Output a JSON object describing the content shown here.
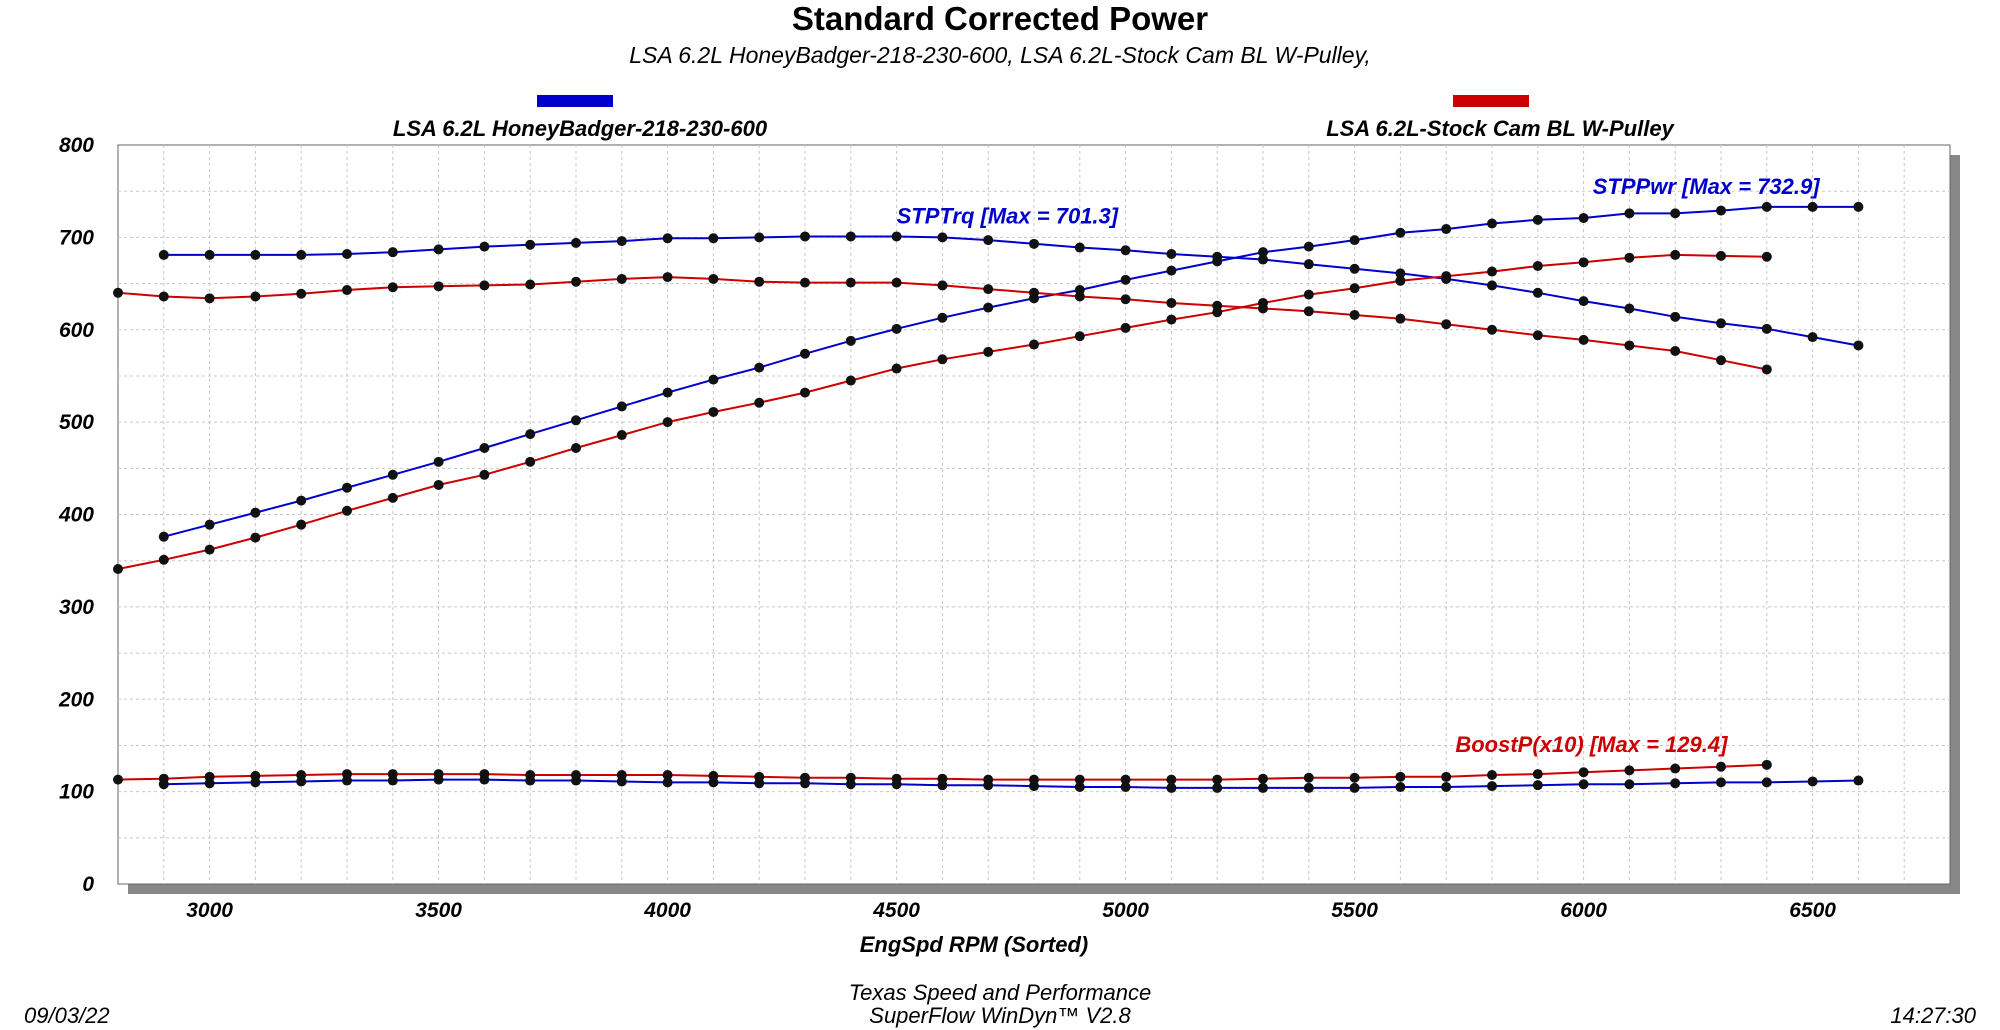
{
  "header": {
    "title": "Standard Corrected Power",
    "subtitle": "LSA 6.2L HoneyBadger-218-230-600, LSA 6.2L-Stock Cam BL W-Pulley,"
  },
  "legend": [
    {
      "label": "LSA 6.2L HoneyBadger-218-230-600",
      "color": "#0000cc"
    },
    {
      "label": "LSA 6.2L-Stock Cam BL W-Pulley",
      "color": "#cc0000"
    }
  ],
  "footer": {
    "date": "09/03/22",
    "time": "14:27:30",
    "shop": "Texas Speed and Performance",
    "software": "SuperFlow WinDyn™  V2.8"
  },
  "chart_data": {
    "type": "line",
    "xlabel": "EngSpd  RPM   (Sorted)",
    "ylabel": "",
    "xlim": [
      2800,
      6800
    ],
    "ylim": [
      0,
      800
    ],
    "x_ticks": [
      3000,
      3500,
      4000,
      4500,
      5000,
      5500,
      6000,
      6500
    ],
    "y_ticks": [
      0,
      100,
      200,
      300,
      400,
      500,
      600,
      700,
      800
    ],
    "grid": true,
    "annotations": [
      {
        "text": "STPTrq [Max = 701.3]",
        "x": 4500,
        "y": 715,
        "color": "#0000cc"
      },
      {
        "text": "STPPwr [Max = 732.9]",
        "x": 6020,
        "y": 747,
        "color": "#0000cc"
      },
      {
        "text": "BoostP(x10) [Max = 129.4]",
        "x": 5720,
        "y": 143,
        "color": "#cc0000"
      }
    ],
    "series": [
      {
        "name": "STPTrq",
        "run": "LSA 6.2L HoneyBadger-218-230-600",
        "color": "#0000cc",
        "x": [
          2900,
          3000,
          3100,
          3200,
          3300,
          3400,
          3500,
          3600,
          3700,
          3800,
          3900,
          4000,
          4100,
          4200,
          4300,
          4400,
          4500,
          4600,
          4700,
          4800,
          4900,
          5000,
          5100,
          5200,
          5300,
          5400,
          5500,
          5600,
          5700,
          5800,
          5900,
          6000,
          6100,
          6200,
          6300,
          6400,
          6500,
          6600
        ],
        "y": [
          681,
          681,
          681,
          681,
          682,
          684,
          687,
          690,
          692,
          694,
          696,
          699,
          699,
          700,
          701,
          701,
          701,
          700,
          697,
          693,
          689,
          686,
          682,
          679,
          676,
          671,
          666,
          661,
          655,
          648,
          640,
          631,
          623,
          614,
          607,
          601,
          592,
          583
        ]
      },
      {
        "name": "STPPwr",
        "run": "LSA 6.2L HoneyBadger-218-230-600",
        "color": "#0000cc",
        "x": [
          2900,
          3000,
          3100,
          3200,
          3300,
          3400,
          3500,
          3600,
          3700,
          3800,
          3900,
          4000,
          4100,
          4200,
          4300,
          4400,
          4500,
          4600,
          4700,
          4800,
          4900,
          5000,
          5100,
          5200,
          5300,
          5400,
          5500,
          5600,
          5700,
          5800,
          5900,
          6000,
          6100,
          6200,
          6300,
          6400,
          6500,
          6600
        ],
        "y": [
          376,
          389,
          402,
          415,
          429,
          443,
          457,
          472,
          487,
          502,
          517,
          532,
          546,
          559,
          574,
          588,
          601,
          613,
          624,
          634,
          643,
          654,
          664,
          674,
          684,
          690,
          697,
          705,
          709,
          715,
          719,
          721,
          726,
          726,
          729,
          733,
          733,
          733
        ]
      },
      {
        "name": "BoostP(x10)",
        "run": "LSA 6.2L HoneyBadger-218-230-600",
        "color": "#0000cc",
        "x": [
          2900,
          3000,
          3100,
          3200,
          3300,
          3400,
          3500,
          3600,
          3700,
          3800,
          3900,
          4000,
          4100,
          4200,
          4300,
          4400,
          4500,
          4600,
          4700,
          4800,
          4900,
          5000,
          5100,
          5200,
          5300,
          5400,
          5500,
          5600,
          5700,
          5800,
          5900,
          6000,
          6100,
          6200,
          6300,
          6400,
          6500,
          6600
        ],
        "y": [
          108,
          109,
          110,
          111,
          112,
          112,
          113,
          113,
          112,
          112,
          111,
          110,
          110,
          109,
          109,
          108,
          108,
          107,
          107,
          106,
          105,
          105,
          104,
          104,
          104,
          104,
          104,
          105,
          105,
          106,
          107,
          108,
          108,
          109,
          110,
          110,
          111,
          112
        ]
      },
      {
        "name": "STPTrq",
        "run": "LSA 6.2L-Stock Cam BL W-Pulley",
        "color": "#cc0000",
        "x": [
          2800,
          2900,
          3000,
          3100,
          3200,
          3300,
          3400,
          3500,
          3600,
          3700,
          3800,
          3900,
          4000,
          4100,
          4200,
          4300,
          4400,
          4500,
          4600,
          4700,
          4800,
          4900,
          5000,
          5100,
          5200,
          5300,
          5400,
          5500,
          5600,
          5700,
          5800,
          5900,
          6000,
          6100,
          6200,
          6300,
          6400
        ],
        "y": [
          640,
          636,
          634,
          636,
          639,
          643,
          646,
          647,
          648,
          649,
          652,
          655,
          657,
          655,
          652,
          651,
          651,
          651,
          648,
          644,
          640,
          636,
          633,
          629,
          626,
          623,
          620,
          616,
          612,
          606,
          600,
          594,
          589,
          583,
          577,
          567,
          557
        ]
      },
      {
        "name": "STPPwr",
        "run": "LSA 6.2L-Stock Cam BL W-Pulley",
        "color": "#cc0000",
        "x": [
          2800,
          2900,
          3000,
          3100,
          3200,
          3300,
          3400,
          3500,
          3600,
          3700,
          3800,
          3900,
          4000,
          4100,
          4200,
          4300,
          4400,
          4500,
          4600,
          4700,
          4800,
          4900,
          5000,
          5100,
          5200,
          5300,
          5400,
          5500,
          5600,
          5700,
          5800,
          5900,
          6000,
          6100,
          6200,
          6300,
          6400
        ],
        "y": [
          341,
          351,
          362,
          375,
          389,
          404,
          418,
          432,
          443,
          457,
          472,
          486,
          500,
          511,
          521,
          532,
          545,
          558,
          568,
          576,
          584,
          593,
          602,
          611,
          619,
          629,
          638,
          645,
          653,
          658,
          663,
          669,
          673,
          678,
          681,
          680,
          679
        ]
      },
      {
        "name": "BoostP(x10)",
        "run": "LSA 6.2L-Stock Cam BL W-Pulley",
        "color": "#cc0000",
        "x": [
          2800,
          2900,
          3000,
          3100,
          3200,
          3300,
          3400,
          3500,
          3600,
          3700,
          3800,
          3900,
          4000,
          4100,
          4200,
          4300,
          4400,
          4500,
          4600,
          4700,
          4800,
          4900,
          5000,
          5100,
          5200,
          5300,
          5400,
          5500,
          5600,
          5700,
          5800,
          5900,
          6000,
          6100,
          6200,
          6300,
          6400
        ],
        "y": [
          113,
          114,
          116,
          117,
          118,
          119,
          119,
          119,
          119,
          118,
          118,
          118,
          118,
          117,
          116,
          115,
          115,
          114,
          114,
          113,
          113,
          113,
          113,
          113,
          113,
          114,
          115,
          115,
          116,
          116,
          118,
          119,
          121,
          123,
          125,
          127,
          129
        ]
      }
    ]
  }
}
